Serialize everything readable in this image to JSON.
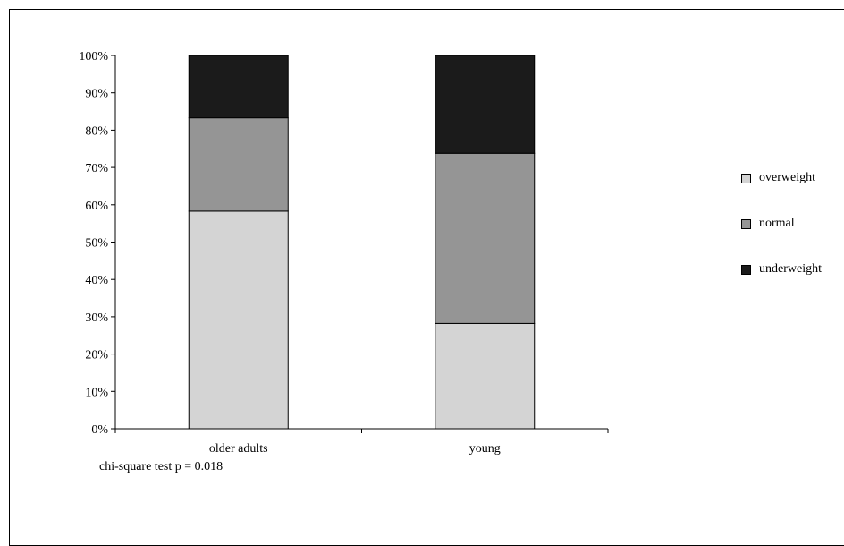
{
  "chart_data": {
    "type": "bar",
    "stacked": true,
    "categories": [
      "older adults",
      "young"
    ],
    "series": [
      {
        "name": "overweight",
        "values": [
          58.3,
          28.2
        ],
        "color": "#d4d4d4"
      },
      {
        "name": "normal",
        "values": [
          25.0,
          45.6
        ],
        "color": "#959595"
      },
      {
        "name": "underweight",
        "values": [
          16.7,
          26.2
        ],
        "color": "#1b1b1b"
      }
    ],
    "ylim": [
      0,
      100
    ],
    "yticks": [
      "0%",
      "10%",
      "20%",
      "30%",
      "40%",
      "50%",
      "60%",
      "70%",
      "80%",
      "90%",
      "100%"
    ],
    "legend_position": "right",
    "grid": false,
    "annotation": "chi-square test p = 0.018"
  }
}
